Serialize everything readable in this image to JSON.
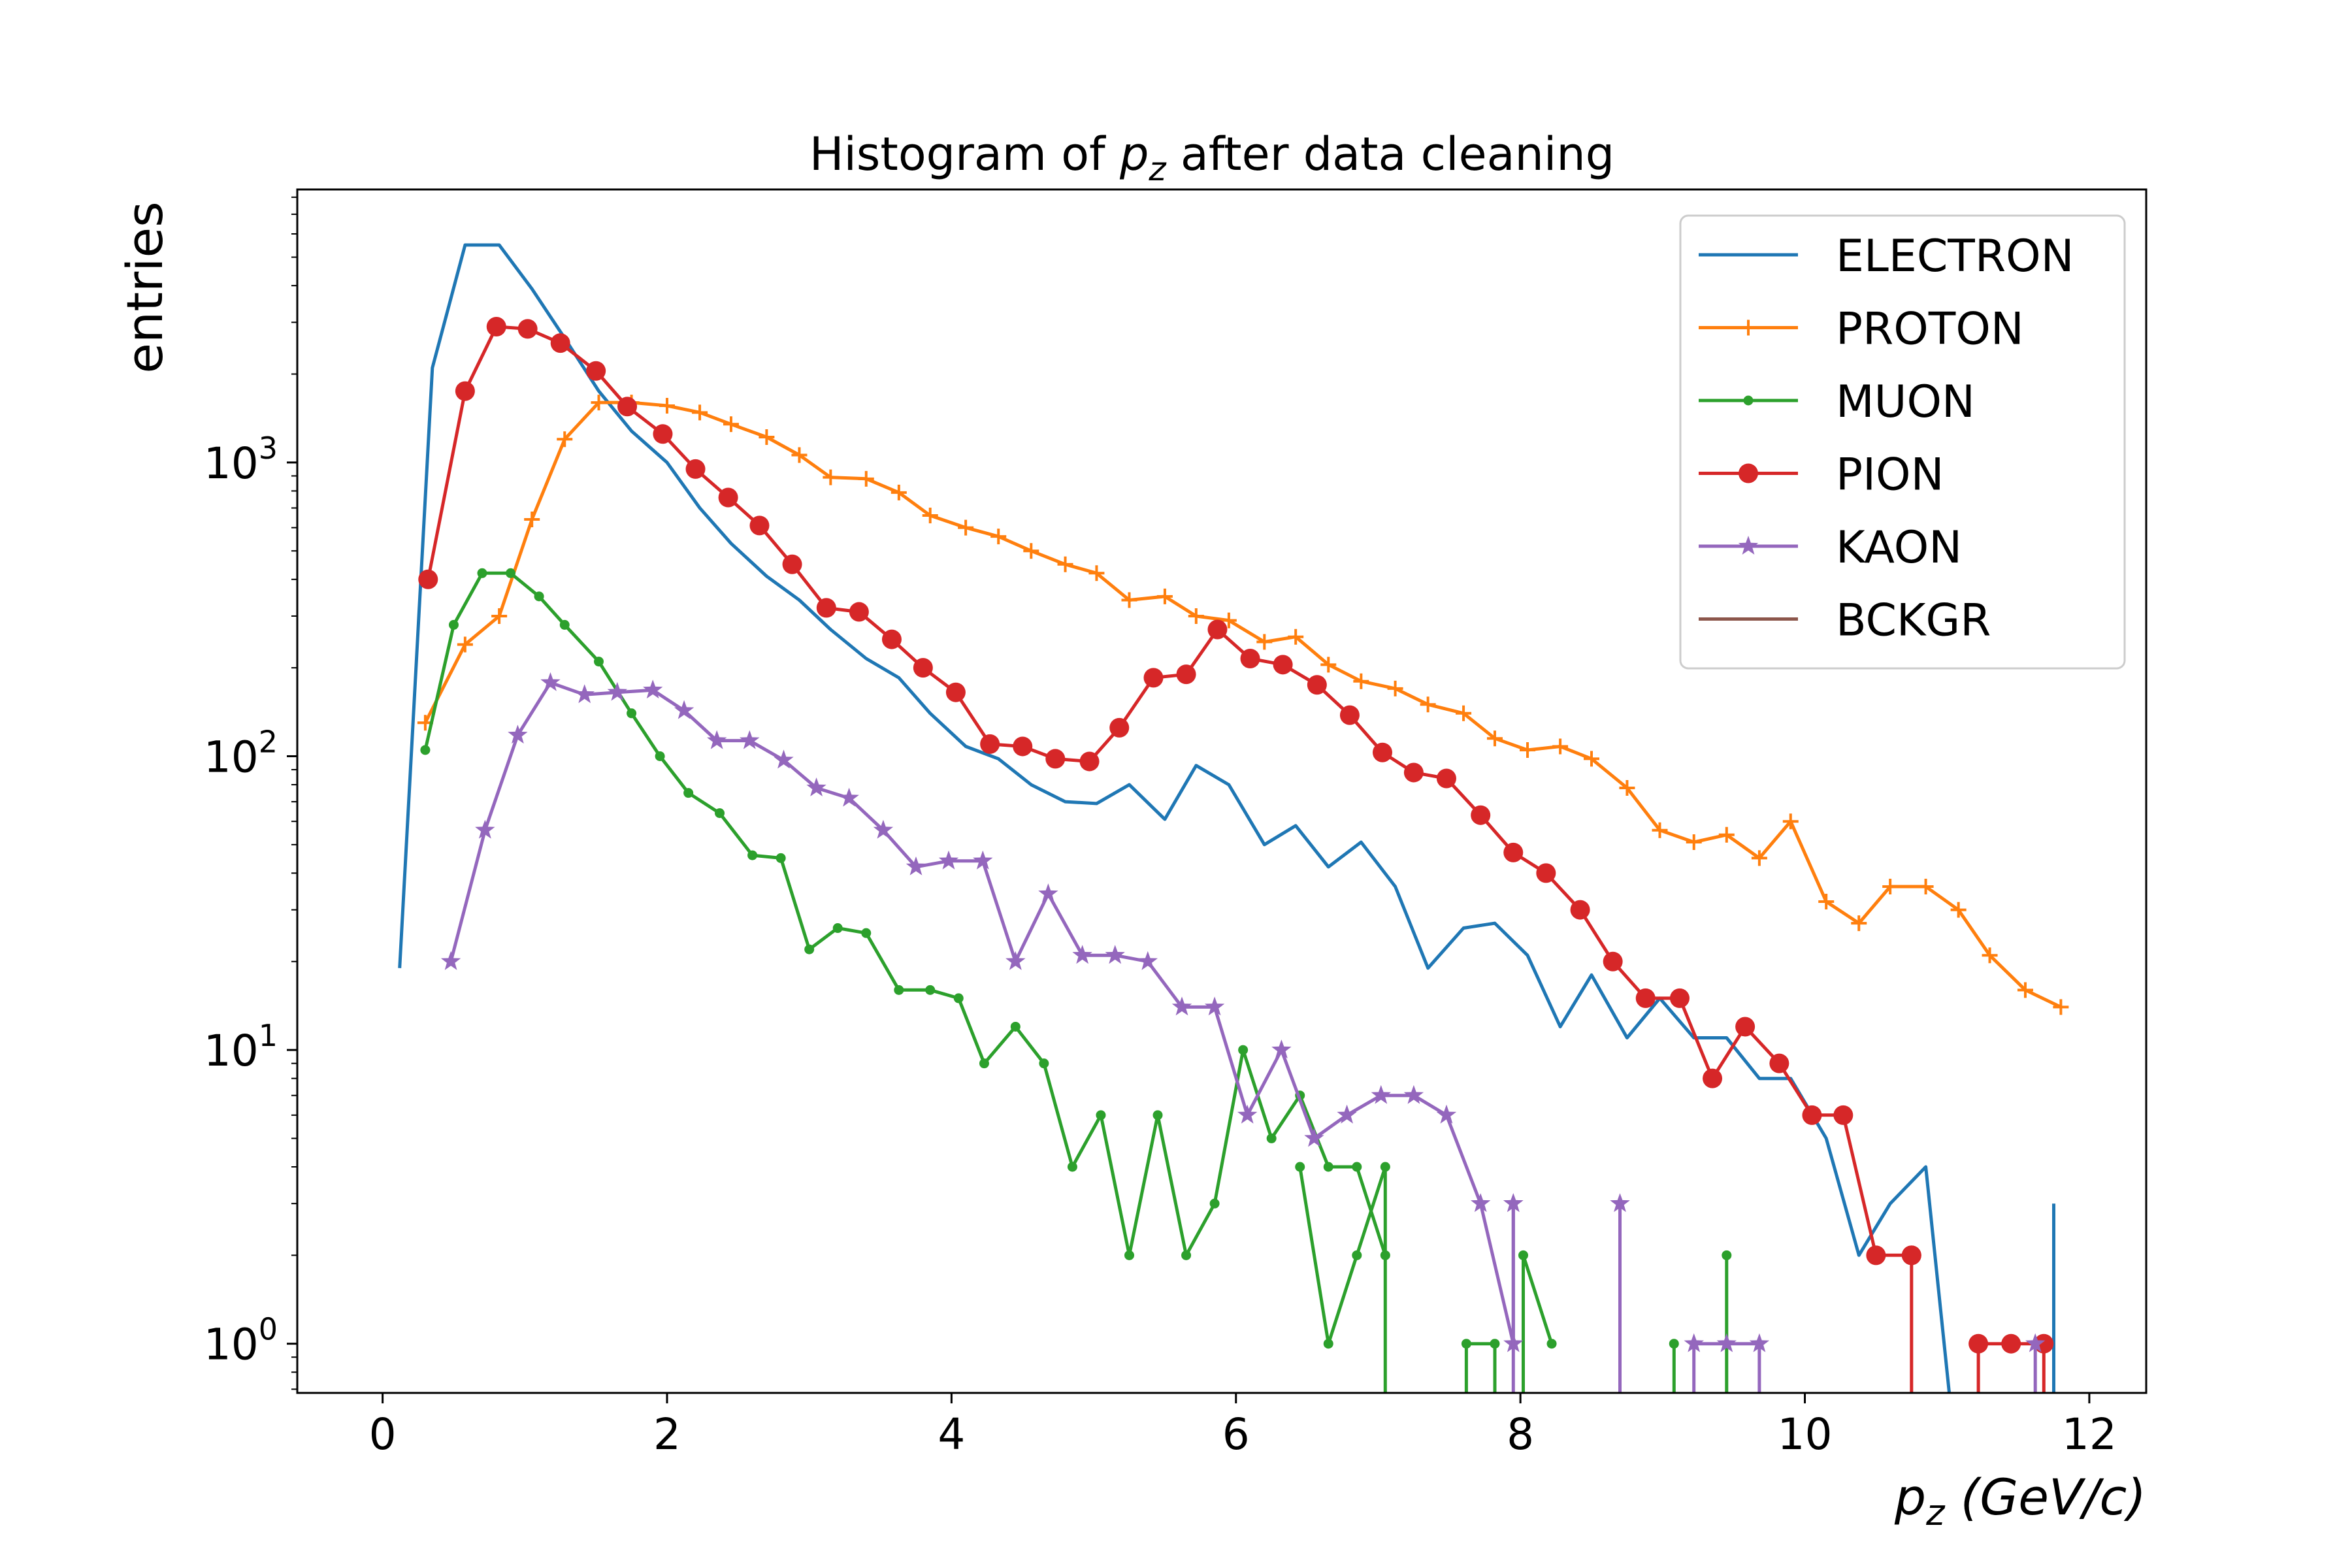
{
  "chart_data": {
    "type": "line",
    "title": {
      "pre": "Histogram of ",
      "sym": "p",
      "sub": "z",
      "post": " after data cleaning"
    },
    "xlabel": {
      "sym": "p",
      "sub": "z",
      "post": " (GeV/c)"
    },
    "ylabel": "entries",
    "xlim": [
      -0.6,
      12.4
    ],
    "ylim": [
      0.68,
      8500
    ],
    "yscale": "log",
    "x_ticks": [
      0,
      2,
      4,
      6,
      8,
      10,
      12
    ],
    "x_tick_labels": [
      "0",
      "2",
      "4",
      "6",
      "8",
      "10",
      "12"
    ],
    "y_ticks": [
      1,
      10,
      100,
      1000
    ],
    "y_tick_labels": [
      {
        "base": "10",
        "exp": "0"
      },
      {
        "base": "10",
        "exp": "1"
      },
      {
        "base": "10",
        "exp": "2"
      },
      {
        "base": "10",
        "exp": "3"
      }
    ],
    "legend_position": "top-right",
    "series": [
      {
        "name": "ELECTRON",
        "color": "#1f77b4",
        "marker": "none",
        "x": [
          0.12,
          0.35,
          0.58,
          0.82,
          1.05,
          1.28,
          1.52,
          1.75,
          2.0,
          2.23,
          2.45,
          2.7,
          2.93,
          3.15,
          3.4,
          3.63,
          3.85,
          4.1,
          4.33,
          4.56,
          4.8,
          5.02,
          5.25,
          5.5,
          5.72,
          5.95,
          6.2,
          6.42,
          6.65,
          6.88,
          7.12,
          7.35,
          7.6,
          7.82,
          8.05,
          8.28,
          8.5,
          8.75,
          8.98,
          9.22,
          9.45,
          9.68,
          9.9,
          10.15,
          10.38,
          10.6,
          10.85,
          11.08
        ],
        "y": [
          19,
          2100,
          5500,
          5500,
          3900,
          2650,
          1750,
          1280,
          1000,
          700,
          530,
          410,
          340,
          270,
          215,
          185,
          140,
          108,
          98,
          80,
          70,
          69,
          80,
          61,
          93,
          80,
          50,
          58,
          42,
          51,
          36,
          19,
          26,
          27,
          21,
          12,
          18,
          11,
          15,
          11,
          11,
          8,
          8,
          5,
          2,
          3,
          4,
          0.1
        ]
      },
      {
        "name": "",
        "color": "#1f77b4",
        "marker": "none",
        "x": [
          11.75,
          11.75
        ],
        "y": [
          0.1,
          3
        ]
      },
      {
        "name": "PROTON",
        "color": "#ff7f0e",
        "marker": "plus",
        "x": [
          0.3,
          0.58,
          0.82,
          1.05,
          1.28,
          1.52,
          1.75,
          2.0,
          2.23,
          2.45,
          2.7,
          2.93,
          3.15,
          3.4,
          3.63,
          3.85,
          4.1,
          4.33,
          4.56,
          4.8,
          5.02,
          5.25,
          5.5,
          5.72,
          5.95,
          6.2,
          6.42,
          6.65,
          6.88,
          7.12,
          7.35,
          7.6,
          7.82,
          8.05,
          8.28,
          8.5,
          8.75,
          8.98,
          9.22,
          9.45,
          9.68,
          9.9,
          10.15,
          10.38,
          10.6,
          10.85,
          11.08,
          11.3,
          11.55,
          11.8
        ],
        "y": [
          130,
          240,
          300,
          640,
          1200,
          1600,
          1600,
          1560,
          1480,
          1350,
          1220,
          1060,
          890,
          880,
          790,
          660,
          600,
          560,
          500,
          450,
          420,
          340,
          350,
          300,
          290,
          245,
          255,
          205,
          180,
          170,
          150,
          140,
          115,
          105,
          108,
          98,
          78,
          56,
          51,
          54,
          45,
          60,
          32,
          27,
          36,
          36,
          30,
          21,
          16,
          14
        ]
      },
      {
        "name": "MUON",
        "color": "#2ca02c",
        "marker": "dot",
        "x": [
          0.3,
          0.5,
          0.7,
          0.9,
          1.1,
          1.28,
          1.52,
          1.75,
          1.95,
          2.15,
          2.37,
          2.6,
          2.8,
          3.0,
          3.2,
          3.4,
          3.63,
          3.85,
          4.05,
          4.23,
          4.45,
          4.65,
          4.85,
          5.05,
          5.25,
          5.45,
          5.65,
          5.85,
          6.05,
          6.25,
          6.45,
          6.65,
          6.85,
          7.05
        ],
        "y": [
          105,
          280,
          420,
          420,
          350,
          280,
          210,
          140,
          100,
          75,
          64,
          46,
          45,
          22,
          26,
          25,
          16,
          16,
          15,
          9,
          12,
          9,
          4,
          6,
          2,
          6,
          2,
          3,
          10,
          5,
          7,
          4,
          4,
          2
        ]
      },
      {
        "name": "",
        "color": "#2ca02c",
        "marker": "dot",
        "x": [
          6.45,
          6.65,
          6.85,
          7.05,
          7.05
        ],
        "y": [
          4,
          1,
          2,
          4,
          0.1
        ]
      },
      {
        "name": "",
        "color": "#2ca02c",
        "marker": "dot",
        "x": [
          7.62,
          7.62,
          7.82,
          7.82
        ],
        "y": [
          0.1,
          1,
          1,
          0.1
        ]
      },
      {
        "name": "",
        "color": "#2ca02c",
        "marker": "dot",
        "x": [
          8.02,
          8.02,
          8.22
        ],
        "y": [
          0.1,
          2,
          1
        ]
      },
      {
        "name": "",
        "color": "#2ca02c",
        "marker": "dot",
        "x": [
          9.08,
          9.08
        ],
        "y": [
          0.1,
          1
        ]
      },
      {
        "name": "",
        "color": "#2ca02c",
        "marker": "dot",
        "x": [
          9.45,
          9.45
        ],
        "y": [
          0.1,
          2
        ]
      },
      {
        "name": "PION",
        "color": "#d62728",
        "marker": "circle",
        "x": [
          0.32,
          0.58,
          0.8,
          1.02,
          1.25,
          1.5,
          1.72,
          1.97,
          2.2,
          2.43,
          2.65,
          2.88,
          3.12,
          3.35,
          3.58,
          3.8,
          4.03,
          4.27,
          4.5,
          4.73,
          4.97,
          5.18,
          5.42,
          5.65,
          5.87,
          6.1,
          6.33,
          6.57,
          6.8,
          7.03,
          7.25,
          7.48,
          7.72,
          7.95,
          8.18,
          8.42,
          8.65,
          8.88,
          9.12,
          9.35,
          9.58,
          9.82,
          10.05,
          10.27,
          10.5,
          10.75
        ],
        "y": [
          400,
          1750,
          2900,
          2850,
          2550,
          2050,
          1550,
          1250,
          950,
          760,
          610,
          450,
          320,
          310,
          250,
          200,
          165,
          110,
          108,
          98,
          96,
          125,
          185,
          190,
          270,
          215,
          205,
          175,
          138,
          103,
          88,
          84,
          63,
          47,
          40,
          30,
          20,
          15,
          15,
          8,
          12,
          9,
          6,
          6,
          2,
          2
        ]
      },
      {
        "name": "",
        "color": "#d62728",
        "marker": "circle",
        "x": [
          10.75,
          10.75
        ],
        "y": [
          2,
          0.1
        ]
      },
      {
        "name": "",
        "color": "#d62728",
        "marker": "circle",
        "x": [
          11.22,
          11.22,
          11.45,
          11.68,
          11.68
        ],
        "y": [
          0.1,
          1,
          1,
          1,
          0.1
        ]
      },
      {
        "name": "KAON",
        "color": "#9467bd",
        "marker": "star",
        "x": [
          0.48,
          0.72,
          0.95,
          1.18,
          1.42,
          1.65,
          1.9,
          2.12,
          2.35,
          2.58,
          2.82,
          3.05,
          3.28,
          3.52,
          3.75,
          3.98,
          4.22,
          4.45,
          4.68,
          4.92,
          5.15,
          5.38,
          5.62,
          5.85,
          6.08,
          6.32,
          6.55,
          6.78,
          7.02,
          7.25,
          7.48,
          7.72,
          7.95,
          7.95
        ],
        "y": [
          20,
          56,
          118,
          178,
          162,
          165,
          168,
          143,
          113,
          113,
          97,
          78,
          72,
          56,
          42,
          44,
          44,
          20,
          34,
          21,
          21,
          20,
          14,
          14,
          6,
          10,
          5,
          6,
          7,
          7,
          6,
          3,
          1,
          3
        ]
      },
      {
        "name": "",
        "color": "#9467bd",
        "marker": "star",
        "x": [
          7.95,
          7.95
        ],
        "y": [
          3,
          0.1
        ]
      },
      {
        "name": "",
        "color": "#9467bd",
        "marker": "star",
        "x": [
          8.7,
          8.7
        ],
        "y": [
          0.1,
          3
        ]
      },
      {
        "name": "",
        "color": "#9467bd",
        "marker": "star",
        "x": [
          9.22,
          9.22,
          9.45,
          9.68,
          9.68
        ],
        "y": [
          0.1,
          1,
          1,
          1,
          0.1
        ]
      },
      {
        "name": "",
        "color": "#9467bd",
        "marker": "star",
        "x": [
          11.62,
          11.62
        ],
        "y": [
          0.1,
          1
        ]
      },
      {
        "name": "BCKGR",
        "color": "#8c564b",
        "marker": "none",
        "x": [],
        "y": []
      }
    ]
  }
}
